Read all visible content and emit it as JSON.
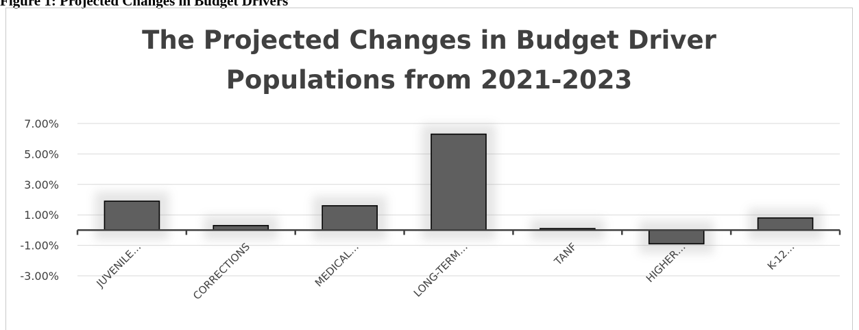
{
  "figure_caption": "Figure 1: Projected Changes in Budget Drivers",
  "colors": {
    "bar_fill": "#5f5f5f",
    "bar_stroke": "#000000",
    "gridline": "#d9d9d9",
    "axis_line": "#404040",
    "text": "#404040"
  },
  "chart_data": {
    "type": "bar",
    "title_lines": [
      "The Projected Changes in Budget Driver",
      "Populations from 2021-2023"
    ],
    "categories": [
      "JUVENILE…",
      "CORRECTIONS",
      "MEDICAL…",
      "LONG-TERM…",
      "TANF",
      "HIGHER…",
      "K-12…"
    ],
    "values": [
      1.9,
      0.3,
      1.6,
      6.3,
      0.1,
      -0.9,
      0.8
    ],
    "value_unit": "%",
    "yticks": [
      "7.00%",
      "5.00%",
      "3.00%",
      "1.00%",
      "-1.00%",
      "-3.00%"
    ],
    "ytick_values": [
      7,
      5,
      3,
      1,
      -1,
      -3
    ],
    "ylim": [
      -3,
      7
    ],
    "xlabel": "",
    "ylabel": "",
    "grid": true,
    "legend": "none"
  }
}
